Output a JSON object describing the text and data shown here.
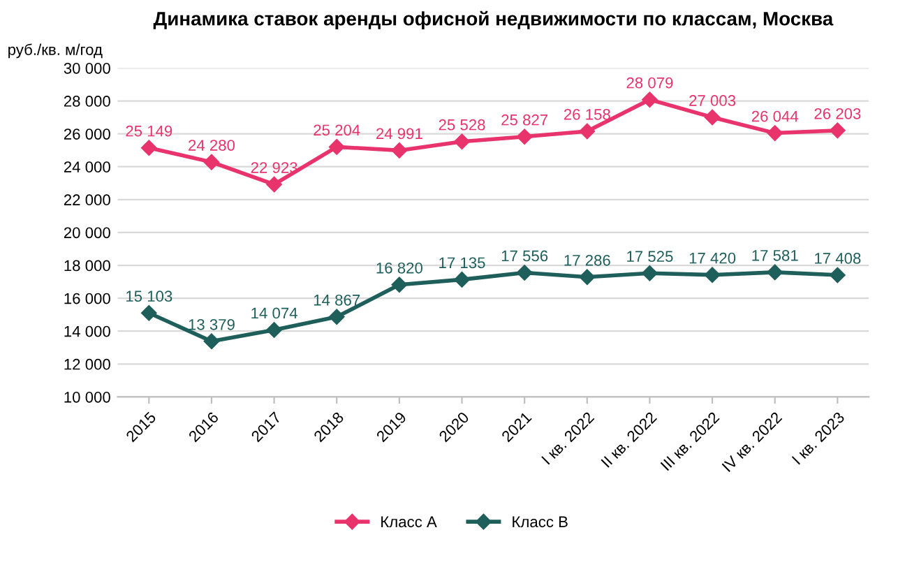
{
  "chart_data": {
    "type": "line",
    "title": "Динамика ставок аренды офисной недвижимости по классам, Москва",
    "ylabel": "руб./кв. м/год",
    "categories": [
      "2015",
      "2016",
      "2017",
      "2018",
      "2019",
      "2020",
      "2021",
      "I кв. 2022",
      "II кв. 2022",
      "III кв. 2022",
      "IV кв. 2022",
      "I кв. 2023"
    ],
    "series": [
      {
        "name": "Класс А",
        "color": "#e8336d",
        "values": [
          25149,
          24280,
          22923,
          25204,
          24991,
          25528,
          25827,
          26158,
          28079,
          27003,
          26044,
          26203
        ],
        "value_labels": [
          "25 149",
          "24 280",
          "22 923",
          "25 204",
          "24 991",
          "25 528",
          "25 827",
          "26 158",
          "28 079",
          "27 003",
          "26 044",
          "26 203"
        ]
      },
      {
        "name": "Класс B",
        "color": "#1f5f5b",
        "values": [
          15103,
          13379,
          14074,
          14867,
          16820,
          17135,
          17556,
          17286,
          17525,
          17420,
          17581,
          17408
        ],
        "value_labels": [
          "15 103",
          "13 379",
          "14 074",
          "14 867",
          "16 820",
          "17 135",
          "17 556",
          "17 286",
          "17 525",
          "17 420",
          "17 581",
          "17 408"
        ]
      }
    ],
    "ylim": [
      10000,
      30000
    ],
    "yticks": [
      {
        "value": 10000,
        "label": "10 000"
      },
      {
        "value": 12000,
        "label": "12 000"
      },
      {
        "value": 14000,
        "label": "14 000"
      },
      {
        "value": 16000,
        "label": "16 000"
      },
      {
        "value": 18000,
        "label": "18 000"
      },
      {
        "value": 20000,
        "label": "20 000"
      },
      {
        "value": 22000,
        "label": "22 000"
      },
      {
        "value": 24000,
        "label": "24 000"
      },
      {
        "value": 26000,
        "label": "26 000"
      },
      {
        "value": 28000,
        "label": "28 000"
      },
      {
        "value": 30000,
        "label": "30 000"
      }
    ],
    "grid": "y",
    "legend": "bottom",
    "marker": "diamond",
    "line_style": "solid"
  }
}
